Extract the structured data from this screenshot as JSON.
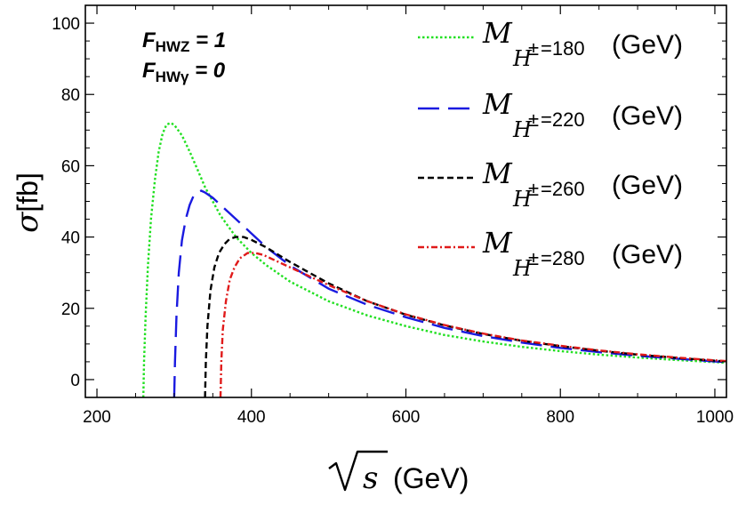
{
  "chart_data": {
    "type": "line",
    "title": "",
    "xlabel_symbol": "s",
    "xlabel_unit": "(GeV)",
    "ylabel_symbol": "σ",
    "ylabel_unit": "[fb]",
    "xlim": [
      185,
      1015
    ],
    "ylim": [
      -5,
      105
    ],
    "xticks": [
      200,
      400,
      600,
      800,
      1000
    ],
    "yticks": [
      0,
      20,
      40,
      60,
      80,
      100
    ],
    "grid": false,
    "legend_position": "top-right",
    "annotations": [
      {
        "main": "F",
        "sub": "HWZ",
        "rest": " = 1"
      },
      {
        "main": "F",
        "sub": "HWγ",
        "rest": " = 0"
      }
    ],
    "series": [
      {
        "name": "M_H±=180 (GeV)",
        "legend_symbol": "M",
        "legend_sub": "H",
        "legend_sup": "±",
        "legend_value": "=180",
        "legend_unit": "(GeV)",
        "color": "#22e022",
        "style": "dotted",
        "points": [
          [
            260,
            -5
          ],
          [
            261,
            5
          ],
          [
            263,
            18
          ],
          [
            266,
            32
          ],
          [
            270,
            45
          ],
          [
            275,
            56
          ],
          [
            280,
            64
          ],
          [
            285,
            69
          ],
          [
            290,
            71.5
          ],
          [
            295,
            72
          ],
          [
            300,
            71.5
          ],
          [
            310,
            68.5
          ],
          [
            320,
            64
          ],
          [
            330,
            59
          ],
          [
            340,
            54
          ],
          [
            360,
            46
          ],
          [
            380,
            40
          ],
          [
            400,
            35.5
          ],
          [
            420,
            32
          ],
          [
            450,
            27.5
          ],
          [
            500,
            22
          ],
          [
            550,
            18
          ],
          [
            600,
            15
          ],
          [
            650,
            12.5
          ],
          [
            700,
            10.7
          ],
          [
            750,
            9.2
          ],
          [
            800,
            8
          ],
          [
            850,
            7
          ],
          [
            900,
            6.2
          ],
          [
            950,
            5.5
          ],
          [
            1000,
            4.9
          ],
          [
            1015,
            4.7
          ]
        ]
      },
      {
        "name": "M_H±=220 (GeV)",
        "legend_symbol": "M",
        "legend_sub": "H",
        "legend_sup": "±",
        "legend_value": "=220",
        "legend_unit": "(GeV)",
        "color": "#1a1ae0",
        "style": "long-dash",
        "points": [
          [
            300,
            -5
          ],
          [
            301,
            5
          ],
          [
            303,
            18
          ],
          [
            306,
            30
          ],
          [
            310,
            39
          ],
          [
            315,
            45
          ],
          [
            320,
            49
          ],
          [
            325,
            51.5
          ],
          [
            330,
            52.5
          ],
          [
            335,
            53
          ],
          [
            340,
            52.5
          ],
          [
            350,
            51
          ],
          [
            360,
            49
          ],
          [
            380,
            45
          ],
          [
            400,
            41
          ],
          [
            420,
            37
          ],
          [
            450,
            32
          ],
          [
            500,
            25.5
          ],
          [
            550,
            21
          ],
          [
            600,
            17.5
          ],
          [
            650,
            14.5
          ],
          [
            700,
            12.2
          ],
          [
            750,
            10.4
          ],
          [
            800,
            8.9
          ],
          [
            850,
            7.7
          ],
          [
            900,
            6.7
          ],
          [
            950,
            5.9
          ],
          [
            1000,
            5.1
          ],
          [
            1015,
            4.9
          ]
        ]
      },
      {
        "name": "M_H±=260 (GeV)",
        "legend_symbol": "M",
        "legend_sub": "H",
        "legend_sup": "±",
        "legend_value": "=260",
        "legend_unit": "(GeV)",
        "color": "#000000",
        "style": "dashed",
        "points": [
          [
            340,
            -5
          ],
          [
            341,
            5
          ],
          [
            343,
            15
          ],
          [
            347,
            25
          ],
          [
            352,
            31.5
          ],
          [
            358,
            35.5
          ],
          [
            365,
            38
          ],
          [
            372,
            39.5
          ],
          [
            380,
            40
          ],
          [
            390,
            40
          ],
          [
            400,
            39.2
          ],
          [
            420,
            37
          ],
          [
            450,
            33
          ],
          [
            500,
            27
          ],
          [
            550,
            22
          ],
          [
            600,
            18.2
          ],
          [
            650,
            15.2
          ],
          [
            700,
            12.8
          ],
          [
            750,
            10.9
          ],
          [
            800,
            9.4
          ],
          [
            850,
            8.1
          ],
          [
            900,
            7
          ],
          [
            950,
            6.1
          ],
          [
            1000,
            5.3
          ],
          [
            1015,
            5.1
          ]
        ]
      },
      {
        "name": "M_H±=280 (GeV)",
        "legend_symbol": "M",
        "legend_sub": "H",
        "legend_sup": "±",
        "legend_value": "=280",
        "legend_unit": "(GeV)",
        "color": "#e01a1a",
        "style": "dash-dot",
        "points": [
          [
            360,
            -5
          ],
          [
            361,
            5
          ],
          [
            363,
            14
          ],
          [
            367,
            22
          ],
          [
            372,
            28
          ],
          [
            378,
            31.5
          ],
          [
            385,
            34
          ],
          [
            395,
            35.5
          ],
          [
            405,
            35.5
          ],
          [
            415,
            35
          ],
          [
            430,
            33.5
          ],
          [
            450,
            31.5
          ],
          [
            500,
            26.5
          ],
          [
            550,
            22
          ],
          [
            600,
            18.3
          ],
          [
            650,
            15.3
          ],
          [
            700,
            12.9
          ],
          [
            750,
            11
          ],
          [
            800,
            9.5
          ],
          [
            850,
            8.2
          ],
          [
            900,
            7.1
          ],
          [
            950,
            6.2
          ],
          [
            1000,
            5.4
          ],
          [
            1015,
            5.2
          ]
        ]
      }
    ]
  }
}
